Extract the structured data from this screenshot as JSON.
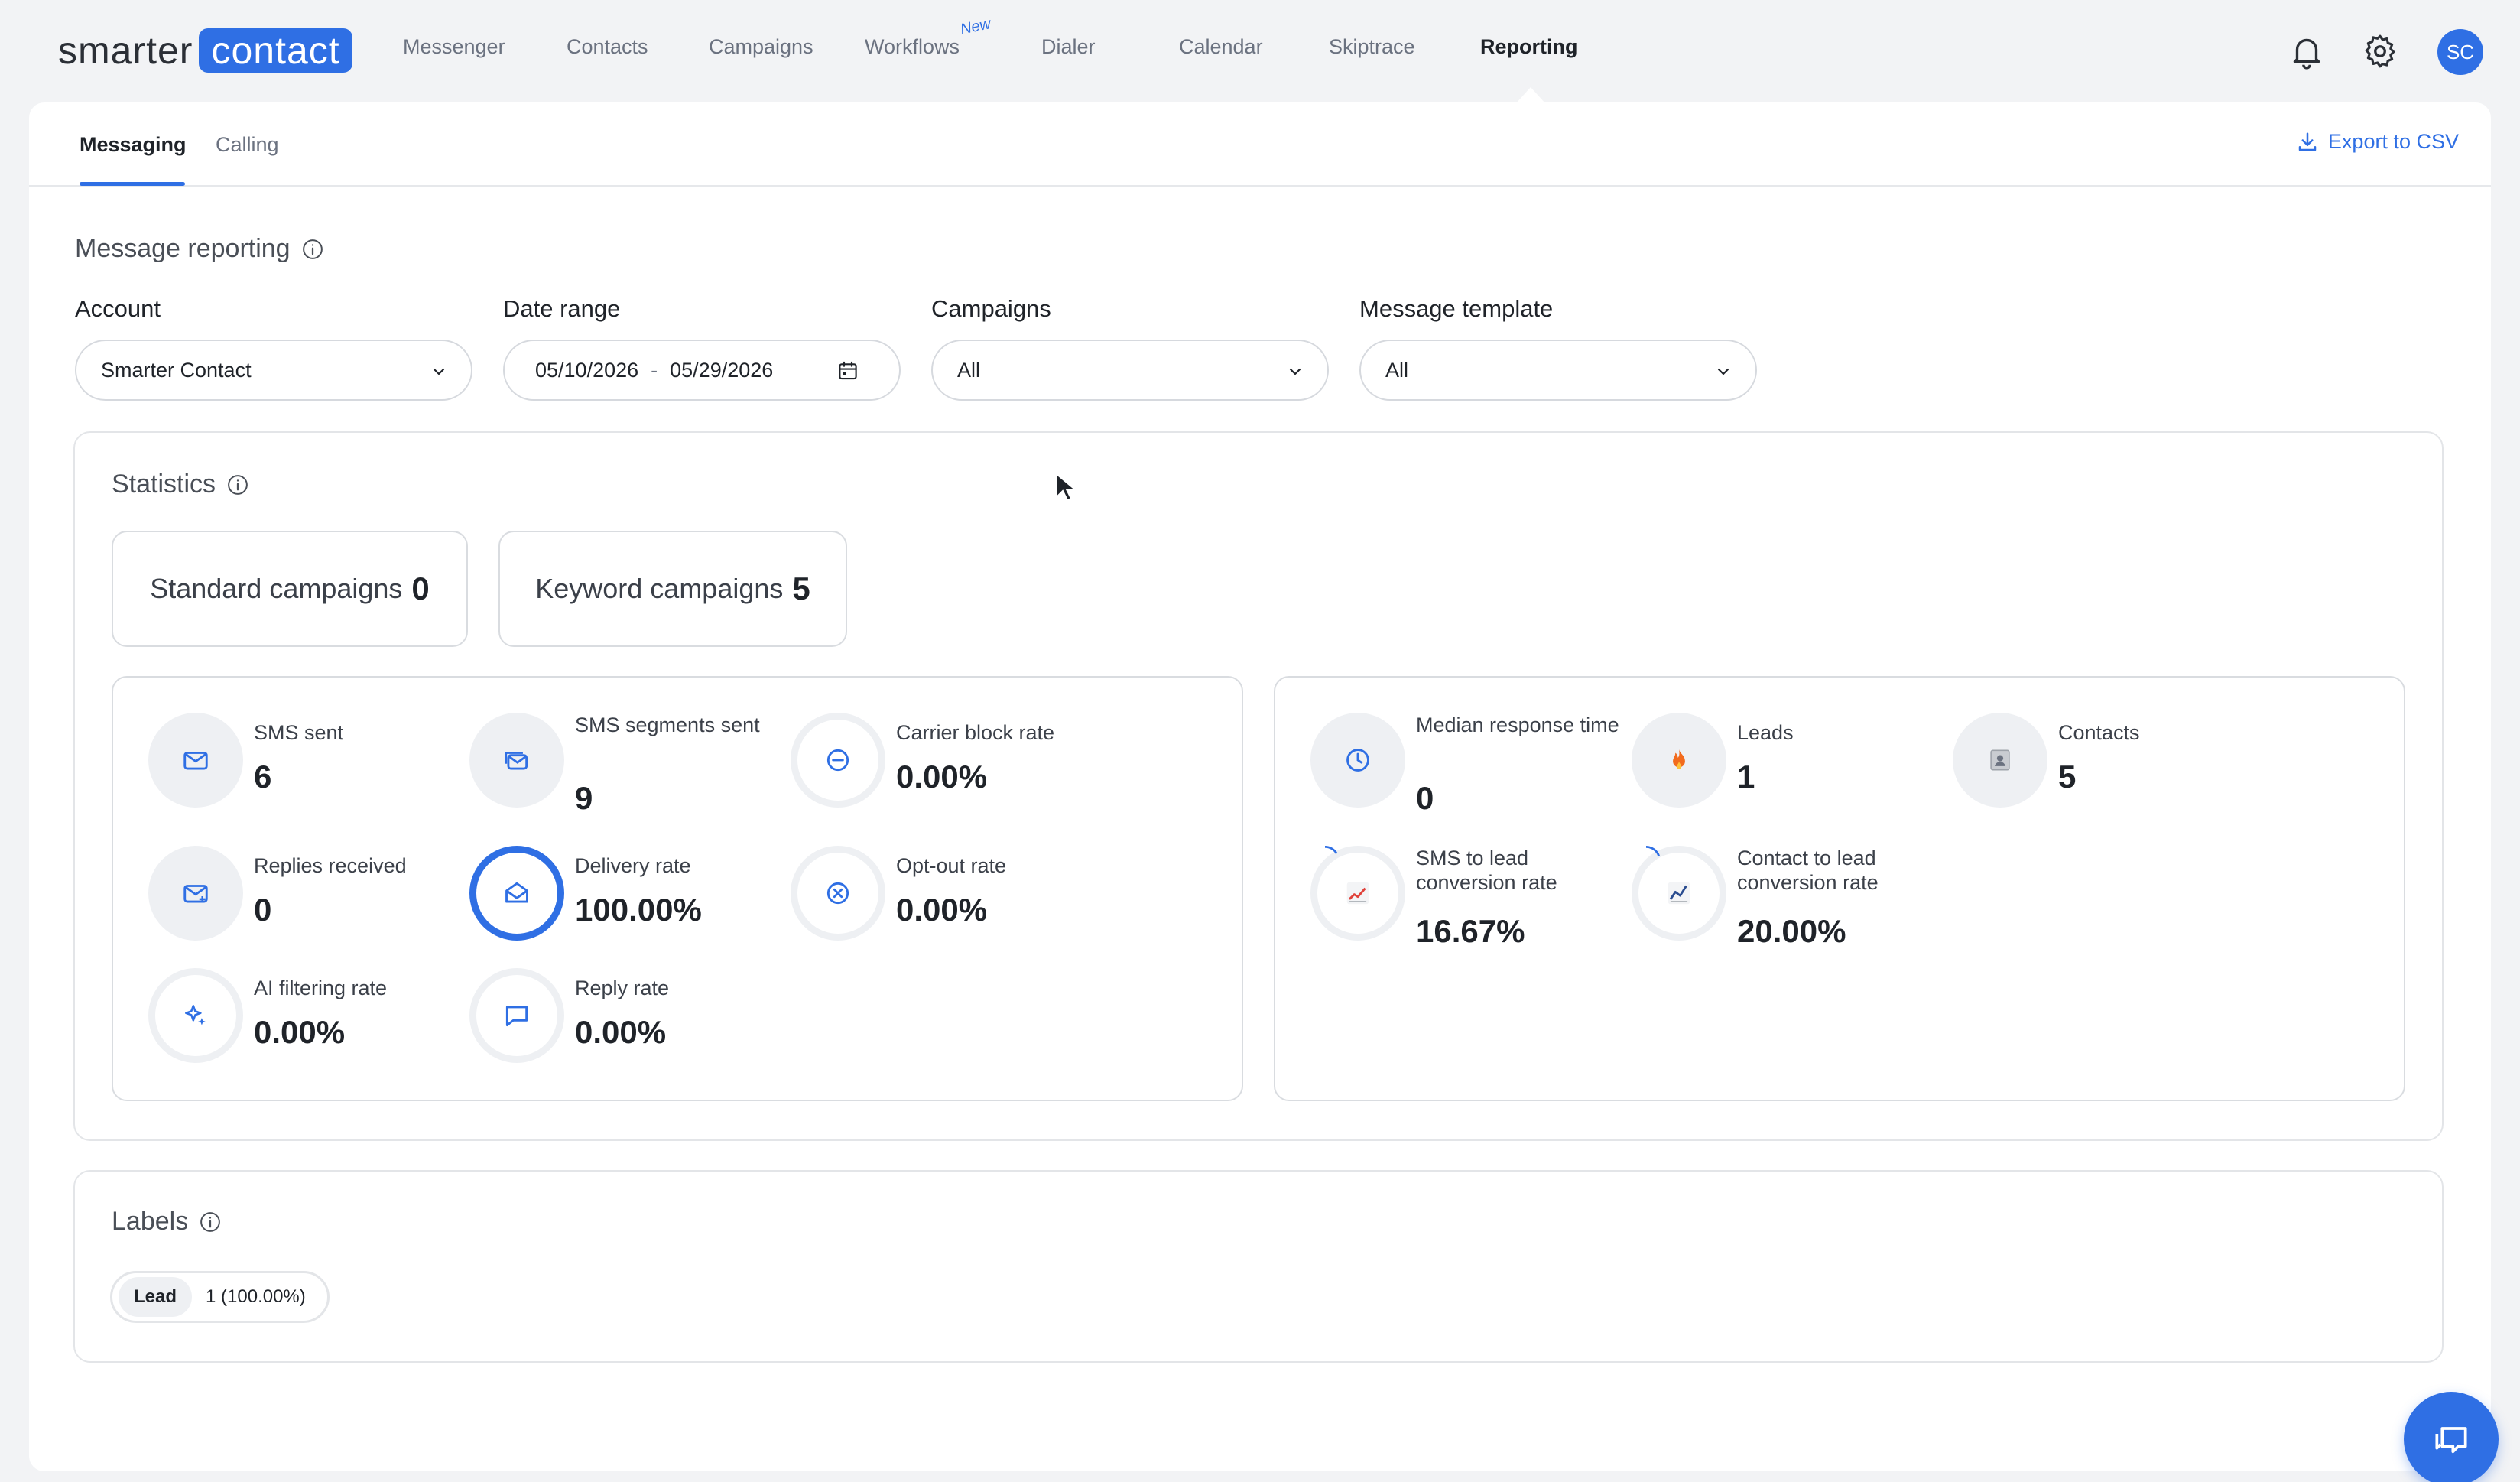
{
  "logo": {
    "part1": "smarter",
    "part2": "contact"
  },
  "nav": {
    "items": [
      "Messenger",
      "Contacts",
      "Campaigns",
      "Workflows",
      "Dialer",
      "Calendar",
      "Skiptrace",
      "Reporting"
    ],
    "new_badge": "New",
    "avatar_initials": "SC"
  },
  "tabs": {
    "messaging": "Messaging",
    "calling": "Calling"
  },
  "export_label": "Export to CSV",
  "message_reporting": {
    "title": "Message reporting",
    "account_label": "Account",
    "account_value": "Smarter Contact",
    "date_label": "Date range",
    "date_from": "05/10/2026",
    "date_sep": "-",
    "date_to": "05/29/2026",
    "campaigns_label": "Campaigns",
    "campaigns_value": "All",
    "template_label": "Message template",
    "template_value": "All"
  },
  "statistics": {
    "title": "Statistics",
    "standard_label": "Standard campaigns",
    "standard_count": "0",
    "keyword_label": "Keyword campaigns",
    "keyword_count": "5",
    "left": {
      "sms_sent_label": "SMS sent",
      "sms_sent_value": "6",
      "sms_segments_label": "SMS segments sent",
      "sms_segments_value": "9",
      "carrier_block_label": "Carrier block rate",
      "carrier_block_value": "0.00%",
      "replies_label": "Replies received",
      "replies_value": "0",
      "delivery_label": "Delivery rate",
      "delivery_value": "100.00%",
      "optout_label": "Opt-out rate",
      "optout_value": "0.00%",
      "ai_filter_label": "AI filtering rate",
      "ai_filter_value": "0.00%",
      "reply_rate_label": "Reply rate",
      "reply_rate_value": "0.00%"
    },
    "right": {
      "median_label": "Median response time",
      "median_value": "0",
      "leads_label": "Leads",
      "leads_value": "1",
      "contacts_label": "Contacts",
      "contacts_value": "5",
      "sms_lead_label": "SMS to lead conversion rate",
      "sms_lead_value": "16.67%",
      "contact_lead_label": "Contact to lead conversion rate",
      "contact_lead_value": "20.00%"
    },
    "accent_color": "#2f6fe4"
  },
  "labels": {
    "title": "Labels",
    "chip_name": "Lead",
    "chip_value": "1 (100.00%)"
  }
}
